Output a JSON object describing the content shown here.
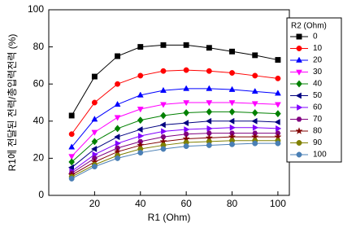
{
  "chart_data": {
    "type": "line",
    "xlabel": "R1 (Ohm)",
    "ylabel": "R1에 전달된 전력/총입력전력 (%)",
    "legend_title": "R2 (Ohm)",
    "legend": "right",
    "x": [
      10,
      20,
      30,
      40,
      50,
      60,
      70,
      80,
      90,
      100
    ],
    "xlim": [
      0,
      105
    ],
    "xticks": [
      20,
      40,
      60,
      80,
      100
    ],
    "ylim": [
      0,
      100
    ],
    "yticks": [
      0,
      20,
      40,
      60,
      80,
      100
    ],
    "series": [
      {
        "name": "0",
        "color": "#000000",
        "marker": "square",
        "values": [
          43,
          64,
          75,
          80,
          81,
          81,
          79.5,
          77.5,
          75.5,
          73
        ]
      },
      {
        "name": "10",
        "color": "#ff0000",
        "marker": "circle",
        "values": [
          33,
          50,
          60,
          64.5,
          67,
          67.5,
          67,
          66,
          64.5,
          63
        ]
      },
      {
        "name": "20",
        "color": "#0000ff",
        "marker": "triangle-up",
        "values": [
          26,
          41,
          49,
          54,
          56.5,
          57.5,
          57.5,
          57,
          56,
          55
        ]
      },
      {
        "name": "30",
        "color": "#ff00ff",
        "marker": "triangle-down",
        "values": [
          21,
          34,
          42,
          46.5,
          49,
          50,
          50,
          50,
          49.5,
          49
        ]
      },
      {
        "name": "40",
        "color": "#008000",
        "marker": "diamond",
        "values": [
          18,
          29,
          36,
          40.5,
          43,
          44.5,
          45,
          45,
          44.5,
          44
        ]
      },
      {
        "name": "50",
        "color": "#000080",
        "marker": "triangle-left",
        "values": [
          15,
          25,
          31.5,
          35.5,
          38,
          39,
          40,
          40,
          40,
          39.5
        ]
      },
      {
        "name": "60",
        "color": "#8000ff",
        "marker": "triangle-right",
        "values": [
          13,
          22,
          28,
          32,
          34.5,
          35.5,
          36,
          36.5,
          36.5,
          36
        ]
      },
      {
        "name": "70",
        "color": "#800080",
        "marker": "hexagon",
        "values": [
          12,
          20,
          25.5,
          29,
          31.5,
          33,
          33.5,
          33.5,
          33.5,
          33.5
        ]
      },
      {
        "name": "80",
        "color": "#800000",
        "marker": "star",
        "values": [
          11,
          18,
          23.5,
          27,
          29,
          30.5,
          31,
          31.5,
          31.5,
          31.5
        ]
      },
      {
        "name": "90",
        "color": "#808000",
        "marker": "circle",
        "values": [
          10,
          16.5,
          21.5,
          25,
          27,
          28.5,
          29,
          29.5,
          29.5,
          29.5
        ]
      },
      {
        "name": "100",
        "color": "#4a7fb5",
        "marker": "circle",
        "values": [
          9,
          15.5,
          20,
          23,
          25,
          26.5,
          27,
          27.5,
          28,
          28
        ]
      }
    ]
  }
}
